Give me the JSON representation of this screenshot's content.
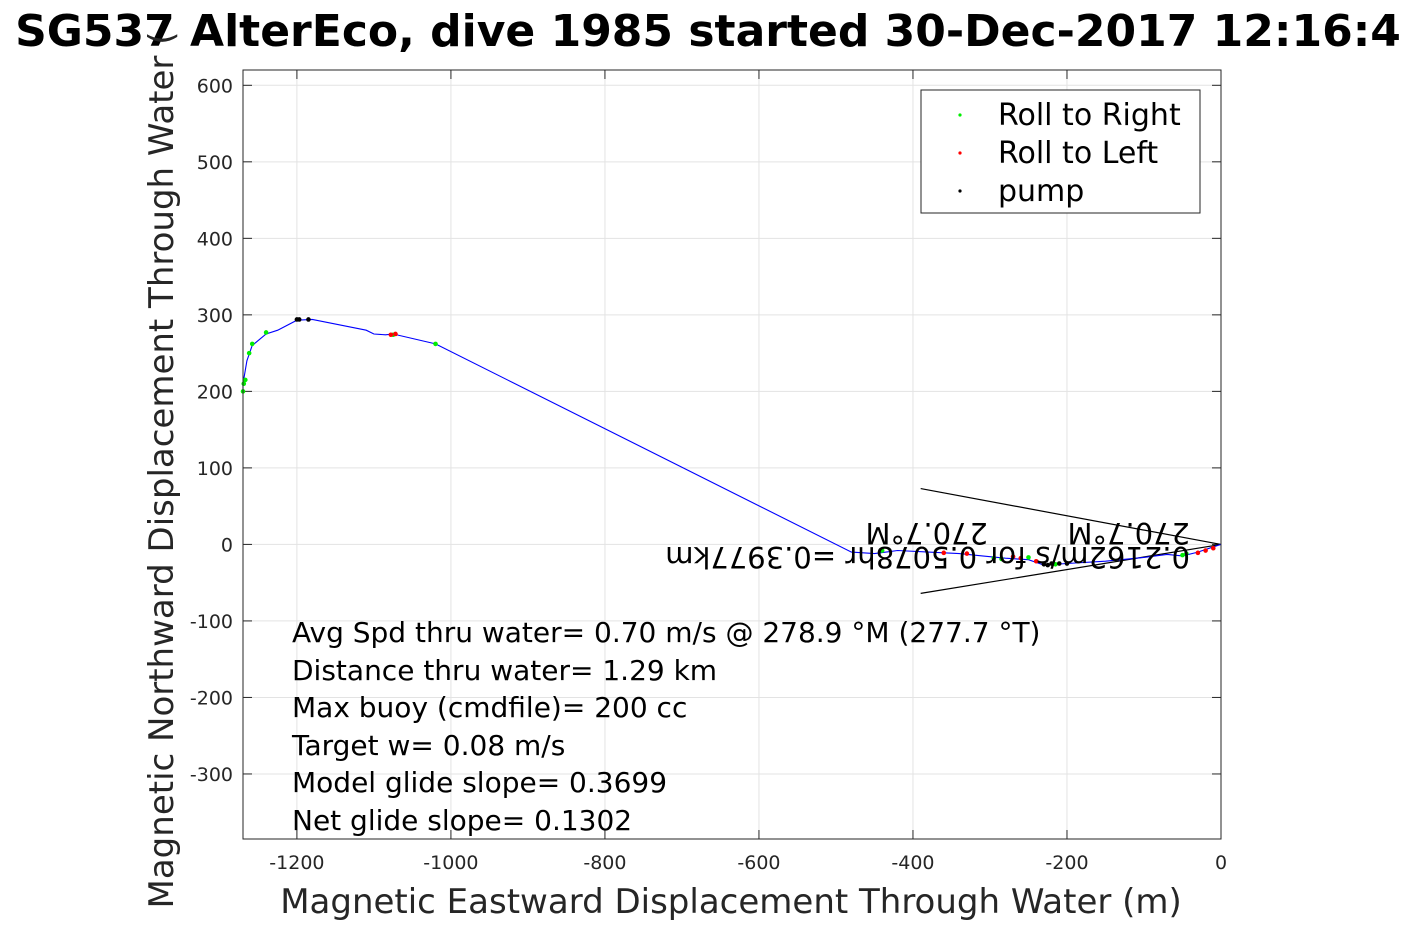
{
  "chart_data": {
    "type": "line",
    "title": "SG537 AlterEco, dive 1985 started 30-Dec-2017 12:16:4",
    "xlabel": "Magnetic Eastward Displacement Through Water (m)",
    "ylabel": "Magnetic Northward Displacement Through Water (",
    "xlim": [
      -1270,
      0
    ],
    "ylim": [
      -385,
      620
    ],
    "xticks": [
      -1200,
      -1000,
      -800,
      -600,
      -400,
      -200,
      0
    ],
    "yticks": [
      -300,
      -200,
      -100,
      0,
      100,
      200,
      300,
      400,
      500,
      600
    ],
    "grid": true,
    "legend_position": "top-right",
    "series": [
      {
        "name": "track",
        "color": "#0000ff",
        "x": [
          0,
          -15,
          -30,
          -50,
          -70,
          -100,
          -150,
          -200,
          -230,
          -250,
          -280,
          -310,
          -340,
          -380,
          -420,
          -450,
          -480,
          -1020,
          -1075,
          -1085,
          -1100,
          -1110,
          -1180,
          -1200,
          -1225,
          -1240,
          -1258,
          -1265,
          -1270,
          -1270
        ],
        "y": [
          0,
          -5,
          -10,
          -15,
          -13,
          -17,
          -22,
          -25,
          -27,
          -20,
          -18,
          -15,
          -12,
          -10,
          -8,
          -12,
          -10,
          262,
          275,
          274,
          275,
          280,
          294,
          293,
          280,
          275,
          260,
          240,
          210,
          200
        ]
      },
      {
        "name": "Roll to Right",
        "color": "#00ee00",
        "x": [
          -1270,
          -1269,
          -1267,
          -1262,
          -1258,
          -1240,
          -1020,
          -1075,
          -440,
          -295,
          -285,
          -250,
          -215,
          -50,
          -45
        ],
        "y": [
          200,
          210,
          215,
          250,
          262,
          277,
          262,
          274,
          -8,
          -18,
          -19,
          -17,
          -26,
          -14,
          -12
        ]
      },
      {
        "name": "Roll to Left",
        "color": "#ff0000",
        "x": [
          -1072,
          -1078,
          -10,
          -20,
          -30,
          -270,
          -260,
          -240,
          -360,
          -330
        ],
        "y": [
          275,
          274,
          -5,
          -8,
          -11,
          -16,
          -18,
          -22,
          -11,
          -12
        ]
      },
      {
        "name": "pump",
        "color": "#000000",
        "x": [
          -1200,
          -1197,
          -1185,
          -230,
          -225,
          -220,
          -210,
          -200
        ],
        "y": [
          294,
          294,
          294,
          -26,
          -27,
          -25,
          -25,
          -25
        ]
      }
    ],
    "legend": [
      "Roll to Right",
      "Roll to Left",
      "pump"
    ],
    "current_arrow": {
      "tip": [
        0,
        0
      ],
      "tails": [
        [
          -390,
          73
        ],
        [
          -390,
          -64
        ]
      ]
    },
    "mirrored_annotations": [
      "0.2162m/s for 0.5078hr =0.3977km",
      "270.7°M",
      "270.7°M"
    ],
    "annotations": [
      "Avg Spd thru water=  0.70 m/s @ 278.9 °M (277.7 °T)",
      "Distance thru water=  1.29 km",
      "Max buoy (cmdfile)= 200 cc",
      "Target w= 0.08 m/s",
      "Model glide slope= 0.3699",
      "Net glide slope= 0.1302"
    ]
  }
}
